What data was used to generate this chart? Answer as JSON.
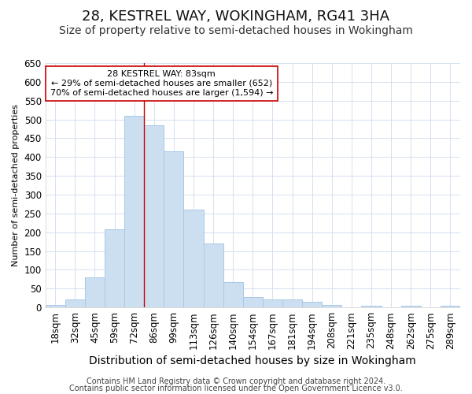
{
  "title": "28, KESTREL WAY, WOKINGHAM, RG41 3HA",
  "subtitle": "Size of property relative to semi-detached houses in Wokingham",
  "xlabel": "Distribution of semi-detached houses by size in Wokingham",
  "ylabel": "Number of semi-detached properties",
  "footer1": "Contains HM Land Registry data © Crown copyright and database right 2024.",
  "footer2": "Contains public sector information licensed under the Open Government Licence v3.0.",
  "annotation_line1": "28 KESTREL WAY: 83sqm",
  "annotation_line2": "← 29% of semi-detached houses are smaller (652)",
  "annotation_line3": "70% of semi-detached houses are larger (1,594) →",
  "bar_color": "#ccdff0",
  "bar_edge_color": "#a8c8e8",
  "ref_line_color": "#cc0000",
  "annotation_box_edge": "#cc0000",
  "background_color": "#ffffff",
  "grid_color": "#d5e0f0",
  "categories": [
    "18sqm",
    "32sqm",
    "45sqm",
    "59sqm",
    "72sqm",
    "86sqm",
    "99sqm",
    "113sqm",
    "126sqm",
    "140sqm",
    "154sqm",
    "167sqm",
    "181sqm",
    "194sqm",
    "208sqm",
    "221sqm",
    "235sqm",
    "248sqm",
    "262sqm",
    "275sqm",
    "289sqm"
  ],
  "values": [
    7,
    22,
    80,
    207,
    510,
    485,
    415,
    260,
    170,
    67,
    27,
    22,
    22,
    15,
    7,
    0,
    5,
    0,
    5,
    0,
    5
  ],
  "ref_line_x": 83,
  "ylim": [
    0,
    650
  ],
  "yticks": [
    0,
    50,
    100,
    150,
    200,
    250,
    300,
    350,
    400,
    450,
    500,
    550,
    600,
    650
  ],
  "title_fontsize": 13,
  "subtitle_fontsize": 10,
  "xlabel_fontsize": 10,
  "ylabel_fontsize": 8,
  "tick_fontsize": 8.5,
  "footer_fontsize": 7
}
